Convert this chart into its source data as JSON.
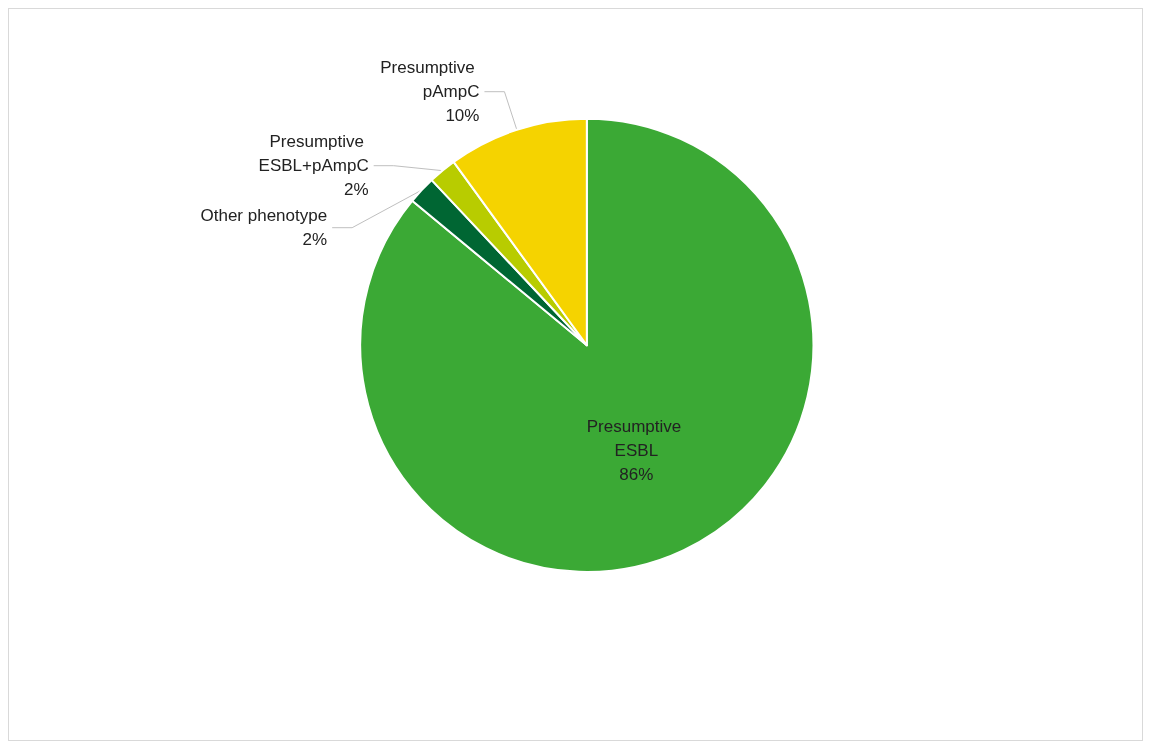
{
  "chart_data": {
    "type": "pie",
    "categories": [
      "Presumptive ESBL",
      "Other phenotype",
      "Presumptive ESBL+pAmpC",
      "Presumptive pAmpC"
    ],
    "values": [
      86,
      2,
      2,
      10
    ],
    "colors": [
      "#3ba935",
      "#006633",
      "#b8cc00",
      "#f5d300"
    ],
    "value_labels": [
      "86%",
      "2%",
      "2%",
      "10%"
    ],
    "legend": false
  }
}
